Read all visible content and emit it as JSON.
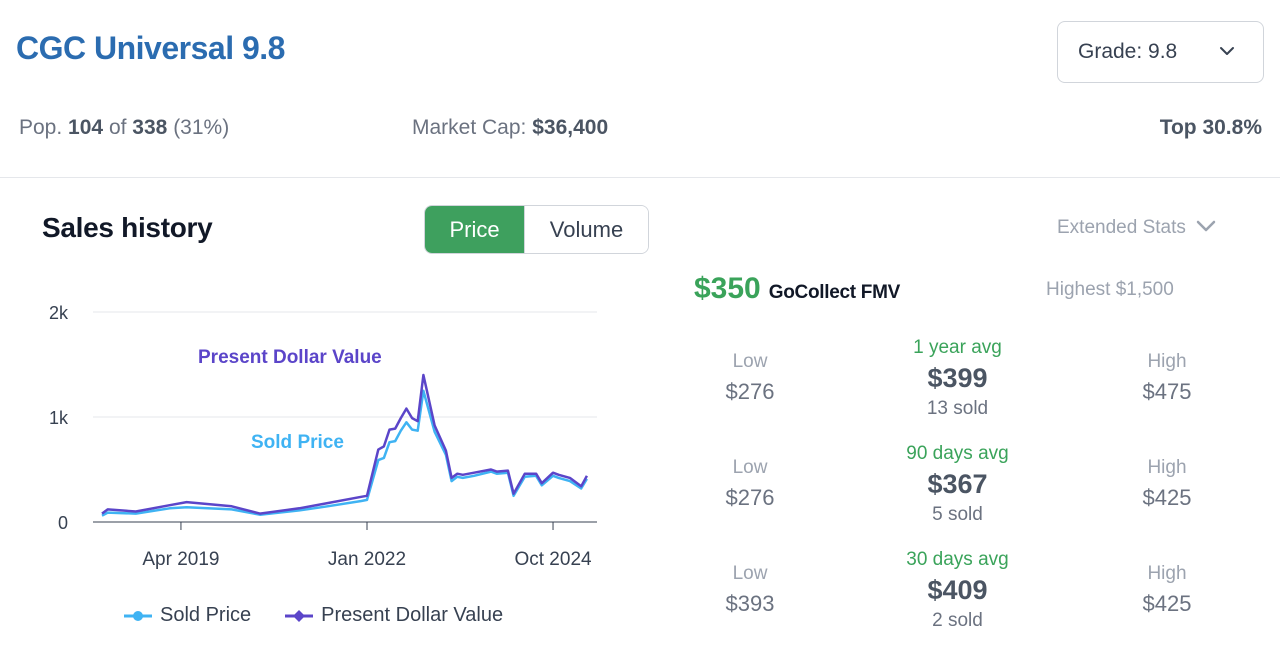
{
  "header": {
    "title": "CGC Universal 9.8",
    "grade_select": "Grade: 9.8"
  },
  "stats": {
    "pop_prefix": "Pop.",
    "pop_count": "104",
    "pop_of": "of",
    "pop_total": "338",
    "pop_pct": "(31%)",
    "market_cap_label": "Market Cap:",
    "market_cap_value": "$36,400",
    "top": "Top 30.8%"
  },
  "sales": {
    "title": "Sales history",
    "toggle": {
      "price": "Price",
      "volume": "Volume",
      "active": "price"
    }
  },
  "extended_stats": "Extended Stats",
  "fmv": {
    "value": "$350",
    "label": "GoCollect FMV"
  },
  "highest": "Highest $1,500",
  "stat_rows": [
    {
      "low_label": "Low",
      "low": "$276",
      "avg_label": "1 year avg",
      "avg": "$399",
      "sold": "13 sold",
      "high_label": "High",
      "high": "$475"
    },
    {
      "low_label": "Low",
      "low": "$276",
      "avg_label": "90 days avg",
      "avg": "$367",
      "sold": "5 sold",
      "high_label": "High",
      "high": "$425"
    },
    {
      "low_label": "Low",
      "low": "$393",
      "avg_label": "30 days avg",
      "avg": "$409",
      "sold": "2 sold",
      "high_label": "High",
      "high": "$425"
    }
  ],
  "colors": {
    "sold_price": "#3fb3f3",
    "present_dollar_value": "#5b45c9",
    "accent_green": "#3ea05e",
    "title_blue": "#2b6cb0"
  },
  "icons": {
    "grade_chevron": "chevron-down-icon",
    "extended_chevron": "chevron-down-icon"
  },
  "chart_data": {
    "type": "line",
    "ylim": [
      0,
      2000
    ],
    "y_ticks": [
      "0",
      "1k",
      "2k"
    ],
    "x_ticks": [
      "Apr 2019",
      "Jan 2022",
      "Oct 2024"
    ],
    "grid": true,
    "legend": "bottom",
    "annotations": [
      "Present Dollar Value",
      "Sold Price"
    ],
    "series": [
      {
        "name": "Sold Price",
        "x": [
          "2018-02",
          "2018-03",
          "2018-08",
          "2019-02",
          "2019-05",
          "2020-01",
          "2020-06",
          "2021-01",
          "2021-06",
          "2021-12",
          "2022-01",
          "2022-03",
          "2022-04",
          "2022-05",
          "2022-06",
          "2022-07",
          "2022-08",
          "2022-09",
          "2022-10",
          "2022-11",
          "2023-01",
          "2023-03",
          "2023-04",
          "2023-05",
          "2023-06",
          "2023-08",
          "2023-11",
          "2023-12",
          "2024-02",
          "2024-03",
          "2024-05",
          "2024-07",
          "2024-08",
          "2024-10",
          "2024-11",
          "2025-01",
          "2025-03",
          "2025-04"
        ],
        "y": [
          60,
          90,
          80,
          130,
          140,
          120,
          70,
          110,
          150,
          200,
          210,
          590,
          610,
          760,
          770,
          870,
          950,
          880,
          870,
          1250,
          860,
          640,
          390,
          430,
          420,
          440,
          480,
          460,
          470,
          250,
          430,
          440,
          350,
          440,
          420,
          390,
          320,
          410
        ]
      },
      {
        "name": "Present Dollar Value",
        "x": [
          "2018-02",
          "2018-03",
          "2018-08",
          "2019-02",
          "2019-05",
          "2020-01",
          "2020-06",
          "2021-01",
          "2021-06",
          "2021-12",
          "2022-01",
          "2022-03",
          "2022-04",
          "2022-05",
          "2022-06",
          "2022-07",
          "2022-08",
          "2022-09",
          "2022-10",
          "2022-11",
          "2023-01",
          "2023-03",
          "2023-04",
          "2023-05",
          "2023-06",
          "2023-08",
          "2023-11",
          "2023-12",
          "2024-02",
          "2024-03",
          "2024-05",
          "2024-07",
          "2024-08",
          "2024-10",
          "2024-11",
          "2025-01",
          "2025-03",
          "2025-04"
        ],
        "y": [
          80,
          120,
          100,
          160,
          190,
          150,
          80,
          130,
          180,
          240,
          250,
          690,
          720,
          880,
          890,
          990,
          1080,
          990,
          960,
          1400,
          920,
          680,
          420,
          460,
          450,
          470,
          500,
          480,
          490,
          270,
          460,
          460,
          370,
          470,
          450,
          420,
          340,
          440
        ]
      }
    ]
  }
}
